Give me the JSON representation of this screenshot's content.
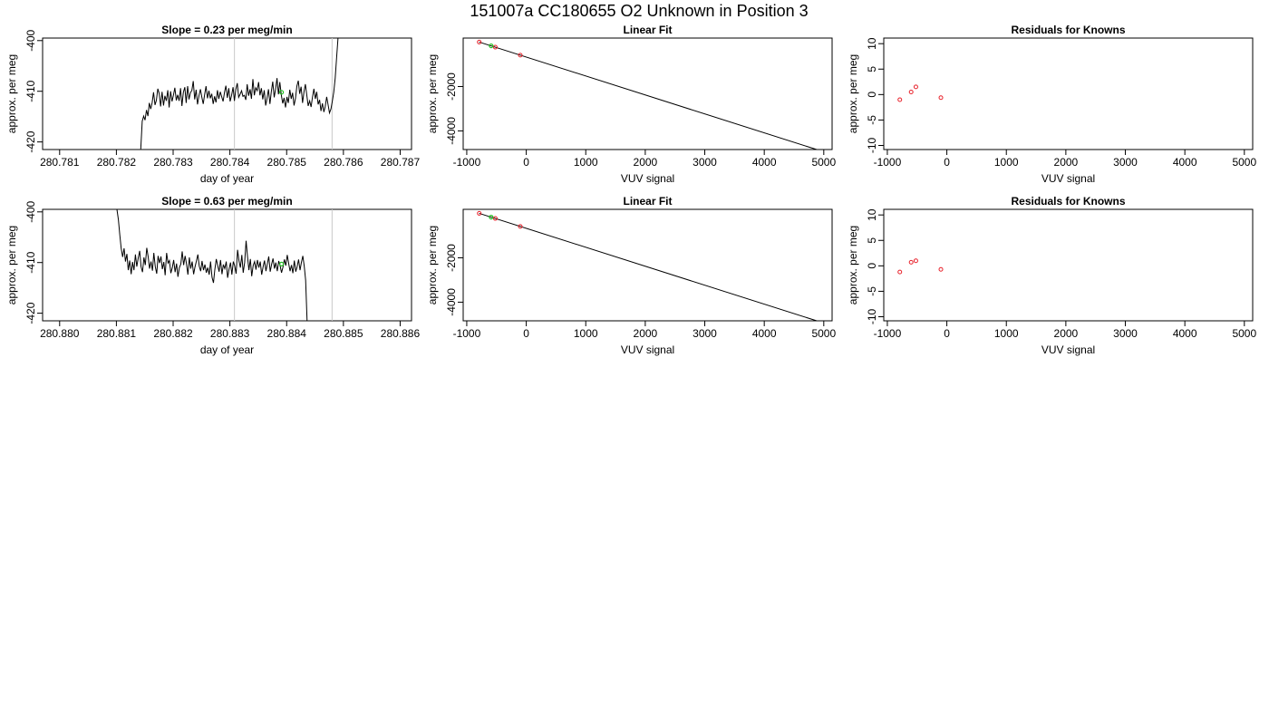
{
  "page": {
    "title": "151007a     CC180655   O2 Unknown in Position  3"
  },
  "chart_data": [
    {
      "type": "line",
      "title": "Slope =  0.23  per meg/min",
      "xlabel": "day of year",
      "ylabel": "approx. per meg",
      "xlim": [
        280.7807,
        280.7872
      ],
      "ylim": [
        -421.5,
        -399.5
      ],
      "yreverse": true,
      "xticks": [
        "280.781",
        "280.782",
        "280.783",
        "280.784",
        "280.785",
        "280.786",
        "280.787"
      ],
      "yticks": [
        "-400",
        "-410",
        "-420"
      ],
      "vlines": [
        280.78408,
        280.7858
      ],
      "green_points": [
        {
          "x": 280.78491,
          "y": -410.2
        }
      ],
      "series": [
        {
          "color": "#000000",
          "x_start": 280.78243,
          "x_step": 2.5e-05,
          "y": [
            -421.4,
            -415.9,
            -414.9,
            -415.7,
            -413.7,
            -414.9,
            -412.3,
            -413.5,
            -412.3,
            -410.2,
            -412.7,
            -411.8,
            -409.5,
            -410.5,
            -413.0,
            -410.1,
            -412.8,
            -410.9,
            -411.9,
            -409.8,
            -413.2,
            -410.0,
            -412.0,
            -410.8,
            -409.3,
            -411.8,
            -410.7,
            -411.9,
            -409.4,
            -412.9,
            -410.2,
            -409.2,
            -412.3,
            -409.0,
            -411.6,
            -410.3,
            -409.8,
            -408.0,
            -411.6,
            -409.7,
            -412.6,
            -410.9,
            -409.6,
            -411.1,
            -412.5,
            -410.6,
            -409.0,
            -411.4,
            -409.9,
            -411.4,
            -410.5,
            -412.5,
            -411.0,
            -412.2,
            -409.8,
            -411.5,
            -410.1,
            -411.1,
            -412.0,
            -410.2,
            -408.9,
            -411.3,
            -409.4,
            -412.0,
            -410.8,
            -409.2,
            -411.9,
            -409.6,
            -408.4,
            -411.2,
            -410.6,
            -409.9,
            -411.0,
            -410.8,
            -411.7,
            -408.6,
            -410.9,
            -409.6,
            -411.5,
            -407.6,
            -410.8,
            -409.3,
            -409.9,
            -408.2,
            -410.8,
            -409.4,
            -411.6,
            -409.8,
            -412.8,
            -411.4,
            -409.6,
            -412.5,
            -410.1,
            -408.1,
            -411.2,
            -409.6,
            -407.4,
            -410.6,
            -408.2,
            -410.7,
            -412.4,
            -411.3,
            -413.2,
            -411.1,
            -412.3,
            -409.7,
            -411.5,
            -410.3,
            -412.8,
            -411.4,
            -409.0,
            -407.9,
            -410.5,
            -409.1,
            -412.3,
            -410.2,
            -408.6,
            -410.8,
            -412.9,
            -411.9,
            -413.1,
            -411.2,
            -409.5,
            -411.5,
            -410.1,
            -412.6,
            -411.7,
            -413.9,
            -412.4,
            -414.1,
            -413.0,
            -411.1,
            -412.7,
            -414.3,
            -413.5,
            -411.9,
            -410.2,
            -407.4,
            -403.5,
            -399.5
          ]
        }
      ]
    },
    {
      "type": "line",
      "title": "Linear Fit",
      "xlabel": "VUV signal",
      "ylabel": "approx. per meg",
      "xlim": [
        -1060,
        5140
      ],
      "ylim": [
        -4840,
        185
      ],
      "yticks_vals": [
        -2000,
        -4000
      ],
      "xticks_vals": [
        -1000,
        0,
        1000,
        2000,
        3000,
        4000,
        5000
      ],
      "line": {
        "x": [
          -790,
          4900
        ],
        "y": [
          4.1,
          -4856
        ]
      },
      "red_points": [
        {
          "x": -790,
          "y": 4
        },
        {
          "x": -520,
          "y": -226
        },
        {
          "x": -100,
          "y": -587
        }
      ],
      "green_points": [
        {
          "x": -590,
          "y": -166
        }
      ]
    },
    {
      "type": "scatter",
      "title": "Residuals for Knowns",
      "xlabel": "VUV signal",
      "ylabel": "approx. per meg",
      "xlim": [
        -1060,
        5140
      ],
      "ylim": [
        -10.8,
        11.1
      ],
      "yticks_vals": [
        10,
        5,
        0,
        -5,
        -10
      ],
      "xticks_vals": [
        -1000,
        0,
        1000,
        2000,
        3000,
        4000,
        5000
      ],
      "red_points": [
        {
          "x": -790,
          "y": -1.0
        },
        {
          "x": -600,
          "y": 0.5
        },
        {
          "x": -520,
          "y": 1.5
        },
        {
          "x": -100,
          "y": -0.6
        }
      ]
    },
    {
      "type": "line",
      "title": "Slope =  0.63  per meg/min",
      "xlabel": "day of year",
      "ylabel": "approx. per meg",
      "xlim": [
        280.8797,
        280.8862
      ],
      "ylim": [
        -421.5,
        -399.5
      ],
      "yreverse": true,
      "xticks": [
        "280.880",
        "280.881",
        "280.882",
        "280.883",
        "280.884",
        "280.885",
        "280.886"
      ],
      "yticks": [
        "-400",
        "-410",
        "-420"
      ],
      "vlines": [
        280.88308,
        280.8848
      ],
      "green_points": [
        {
          "x": 280.88391,
          "y": -410.3
        }
      ],
      "series": [
        {
          "color": "#000000",
          "x_start": 280.88101,
          "x_step": 2.5e-05,
          "y": [
            -399.5,
            -401.5,
            -404.6,
            -407.2,
            -408.9,
            -407.2,
            -409.8,
            -408.3,
            -411.5,
            -409.6,
            -412.3,
            -409.9,
            -411.5,
            -408.4,
            -410.8,
            -409.1,
            -407.7,
            -410.8,
            -411.9,
            -409.0,
            -410.5,
            -407.1,
            -408.9,
            -411.2,
            -409.8,
            -411.6,
            -408.1,
            -410.8,
            -412.2,
            -408.7,
            -410.1,
            -408.8,
            -411.3,
            -409.9,
            -412.5,
            -408.1,
            -410.1,
            -409.6,
            -412.1,
            -411.0,
            -409.5,
            -411.9,
            -410.2,
            -412.8,
            -411.0,
            -410.3,
            -407.8,
            -410.5,
            -408.7,
            -410.2,
            -412.4,
            -409.0,
            -411.2,
            -409.8,
            -412.3,
            -410.9,
            -409.7,
            -408.4,
            -410.7,
            -411.7,
            -409.7,
            -411.5,
            -410.4,
            -412.0,
            -411.0,
            -412.4,
            -409.8,
            -412.9,
            -414.0,
            -411.4,
            -409.3,
            -410.6,
            -411.8,
            -409.5,
            -412.3,
            -410.4,
            -411.2,
            -409.8,
            -413.0,
            -411.3,
            -410.0,
            -412.4,
            -409.8,
            -410.7,
            -412.2,
            -407.5,
            -409.6,
            -411.0,
            -408.5,
            -412.0,
            -410.0,
            -405.7,
            -408.7,
            -411.5,
            -409.3,
            -412.7,
            -410.6,
            -409.8,
            -411.4,
            -409.5,
            -411.0,
            -409.8,
            -412.4,
            -410.8,
            -409.6,
            -411.7,
            -410.2,
            -408.8,
            -411.8,
            -410.3,
            -409.2,
            -411.2,
            -410.0,
            -411.7,
            -409.7,
            -410.6,
            -412.0,
            -410.9,
            -409.4,
            -410.6,
            -408.5,
            -410.1,
            -411.7,
            -410.5,
            -412.1,
            -409.6,
            -411.8,
            -410.8,
            -409.4,
            -411.5,
            -410.0,
            -408.7,
            -410.8,
            -413.5,
            -421.6
          ]
        }
      ]
    },
    {
      "type": "line",
      "title": "Linear Fit",
      "xlabel": "VUV signal",
      "ylabel": "approx. per meg",
      "xlim": [
        -1060,
        5140
      ],
      "ylim": [
        -4840,
        185
      ],
      "yticks_vals": [
        -2000,
        -4000
      ],
      "xticks_vals": [
        -1000,
        0,
        1000,
        2000,
        3000,
        4000,
        5000
      ],
      "line": {
        "x": [
          -790,
          4900
        ],
        "y": [
          4.1,
          -4856
        ]
      },
      "red_points": [
        {
          "x": -790,
          "y": 4
        },
        {
          "x": -520,
          "y": -226
        },
        {
          "x": -100,
          "y": -587
        }
      ],
      "green_points": [
        {
          "x": -590,
          "y": -166
        }
      ]
    },
    {
      "type": "scatter",
      "title": "Residuals for Knowns",
      "xlabel": "VUV signal",
      "ylabel": "approx. per meg",
      "xlim": [
        -1060,
        5140
      ],
      "ylim": [
        -10.8,
        11.1
      ],
      "yticks_vals": [
        10,
        5,
        0,
        -5,
        -10
      ],
      "xticks_vals": [
        -1000,
        0,
        1000,
        2000,
        3000,
        4000,
        5000
      ],
      "red_points": [
        {
          "x": -790,
          "y": -1.2
        },
        {
          "x": -600,
          "y": 0.7
        },
        {
          "x": -520,
          "y": 1.0
        },
        {
          "x": -100,
          "y": -0.7
        }
      ]
    }
  ]
}
